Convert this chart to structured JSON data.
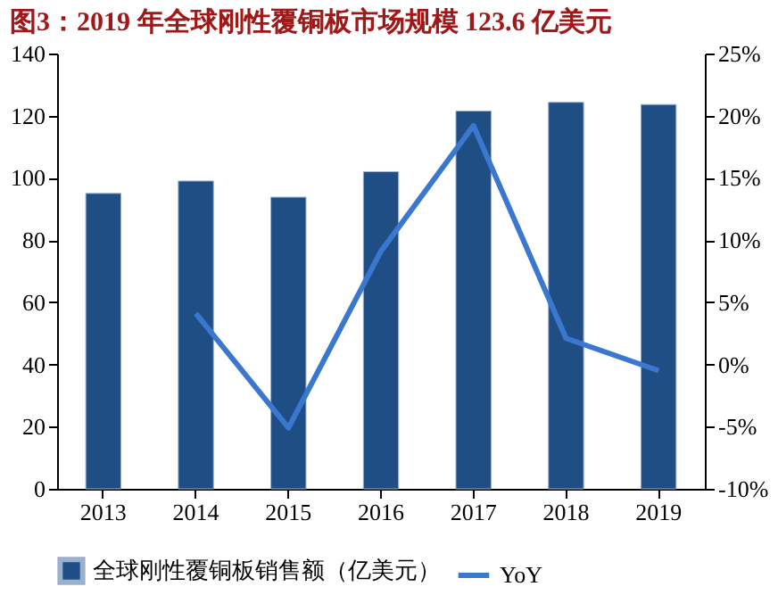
{
  "chart_data": {
    "type": "bar",
    "title": "图3：2019 年全球刚性覆铜板市场规模 123.6 亿美元",
    "categories": [
      "2013",
      "2014",
      "2015",
      "2016",
      "2017",
      "2018",
      "2019"
    ],
    "series": [
      {
        "name": "全球刚性覆铜板销售额（亿美元）",
        "color": "#1f4e85",
        "values": [
          95,
          99,
          93.8,
          102,
          121.5,
          124.3,
          123.6
        ]
      },
      {
        "name": "YoY",
        "type": "line",
        "axis": "y2",
        "color": "#3a78d0",
        "values": [
          null,
          4.1,
          -5.1,
          9.1,
          19.2,
          2.1,
          -0.5
        ]
      }
    ],
    "ylim": [
      0,
      140
    ],
    "yticks": [
      0,
      20,
      40,
      60,
      80,
      100,
      120,
      140
    ],
    "y2lim": [
      -10,
      25
    ],
    "y2ticks": [
      {
        "value": -10,
        "label": "-10%"
      },
      {
        "value": -5,
        "label": "-5%"
      },
      {
        "value": 0,
        "label": "0%"
      },
      {
        "value": 5,
        "label": "5%"
      },
      {
        "value": 10,
        "label": "10%"
      },
      {
        "value": 15,
        "label": "15%"
      },
      {
        "value": 20,
        "label": "20%"
      },
      {
        "value": 25,
        "label": "25%"
      }
    ],
    "grid": false,
    "legend": "bottom",
    "marker": "none",
    "line_style": "solid"
  }
}
